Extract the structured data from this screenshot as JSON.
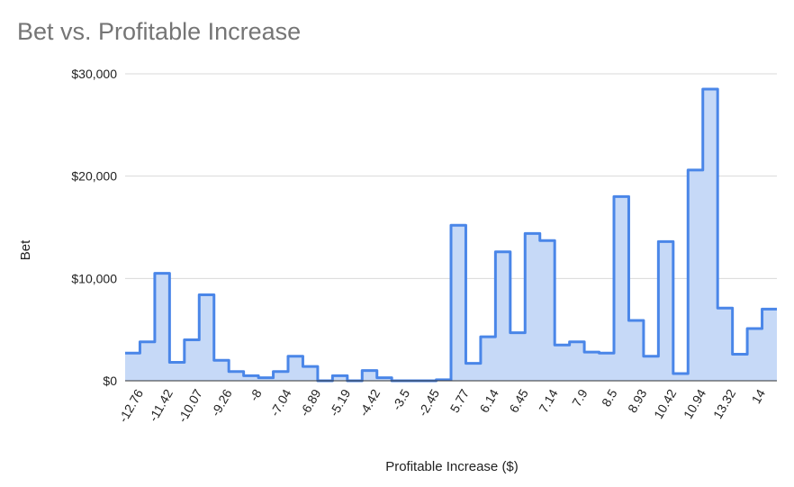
{
  "chart_data": {
    "type": "area",
    "title": "Bet vs. Profitable Increase",
    "xlabel": "Profitable Increase ($)",
    "ylabel": "Bet",
    "ylim": [
      0,
      30000
    ],
    "y_ticks": [
      "$0",
      "$10,000",
      "$20,000",
      "$30,000"
    ],
    "y_tick_values": [
      0,
      10000,
      20000,
      30000
    ],
    "x_tick_labels": [
      "-12.76",
      "-11.42",
      "-10.07",
      "-9.26",
      "-8",
      "-7.04",
      "-6.89",
      "-5.19",
      "-4.42",
      "-3.5",
      "-2.45",
      "5.77",
      "6.14",
      "6.45",
      "7.14",
      "7.9",
      "8.5",
      "8.93",
      "10.42",
      "10.94",
      "13.32",
      "14"
    ],
    "values": [
      2700,
      3800,
      10500,
      1800,
      4000,
      8400,
      2000,
      900,
      500,
      300,
      900,
      2400,
      1400,
      0,
      500,
      0,
      1000,
      300,
      0,
      0,
      0,
      100,
      15200,
      1700,
      4300,
      12600,
      4700,
      14400,
      13700,
      3500,
      3800,
      2800,
      2700,
      18000,
      5900,
      2400,
      13600,
      700,
      20600,
      28500,
      7100,
      2600,
      5100,
      7000
    ],
    "grid": true,
    "legend": "none",
    "colors": {
      "line": "#4a86e8",
      "fill": "#c6d9f7",
      "grid": "#d9d9d9",
      "baseline": "#333333"
    }
  }
}
